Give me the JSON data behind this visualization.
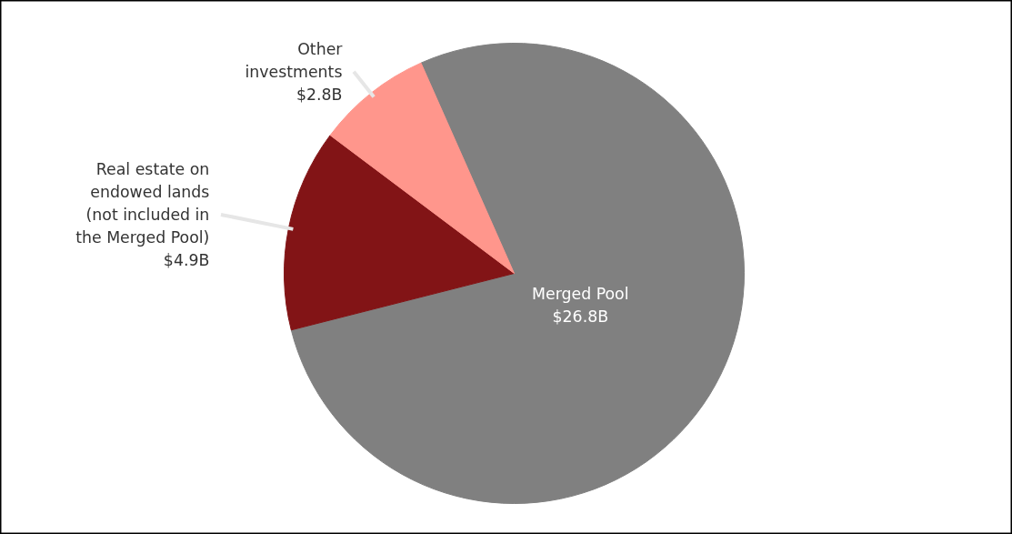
{
  "chart_data": {
    "type": "pie",
    "categories": [
      "Merged Pool",
      "Real estate on endowed lands (not included in the Merged Pool)",
      "Other investments"
    ],
    "values": [
      26.8,
      4.9,
      2.8
    ],
    "value_labels": [
      "$26.8B",
      "$4.9B",
      "$2.8B"
    ],
    "colors": [
      "#808080",
      "#821416",
      "#ff968c"
    ]
  }
}
